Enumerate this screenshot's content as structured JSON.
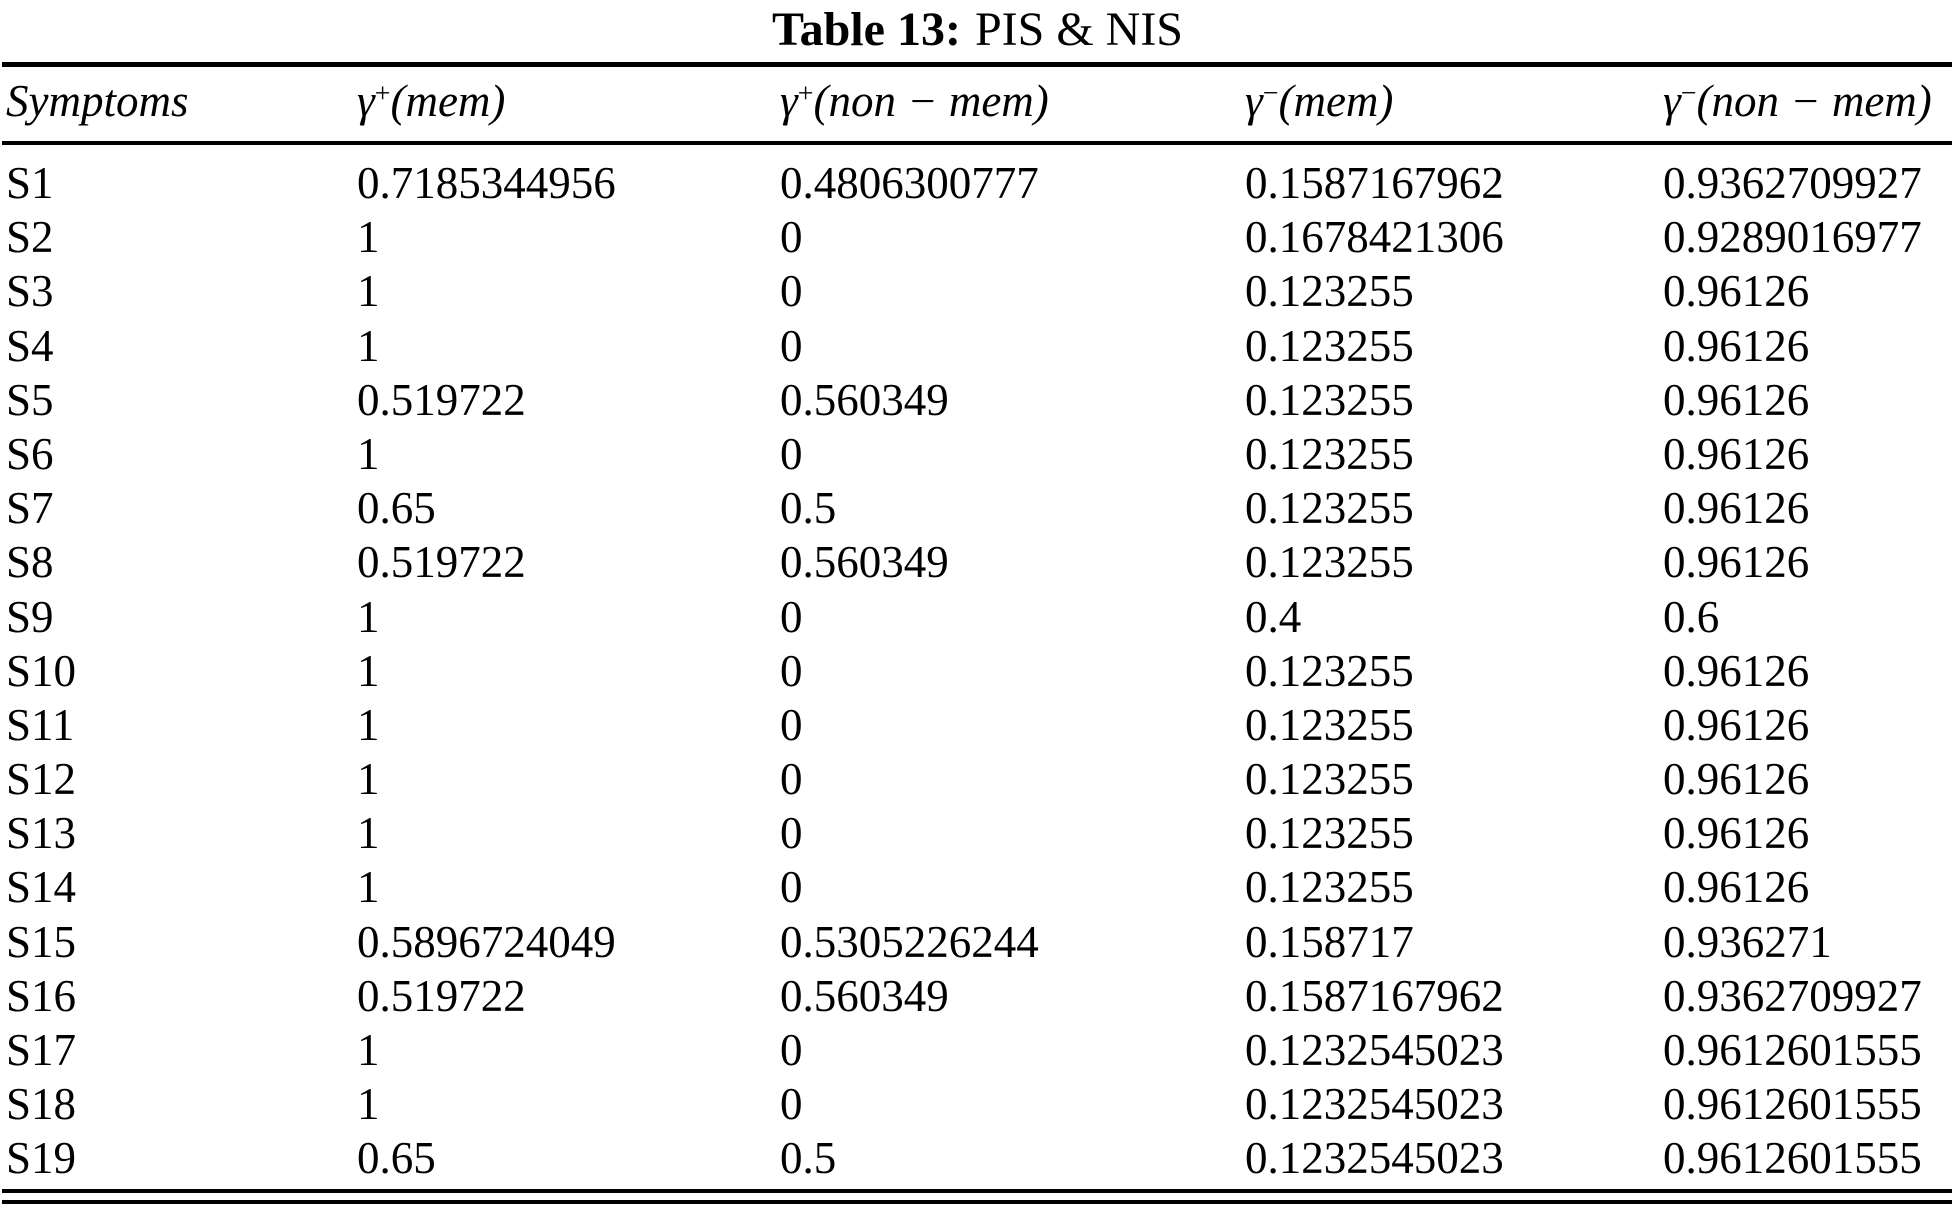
{
  "title": {
    "label": "Table 13:",
    "caption": "PIS & NIS"
  },
  "table": {
    "columns": [
      {
        "label": "Symptoms"
      },
      {
        "base": "γ",
        "sup": "+",
        "args": "(mem)"
      },
      {
        "base": "γ",
        "sup": "+",
        "args": "(non − mem)"
      },
      {
        "base": "γ",
        "sup": "−",
        "args": "(mem)"
      },
      {
        "base": "γ",
        "sup": "−",
        "args": "(non − mem)"
      }
    ],
    "rows": [
      {
        "symptom": "S1",
        "values": [
          "0.7185344956",
          "0.4806300777",
          "0.1587167962",
          "0.9362709927"
        ]
      },
      {
        "symptom": "S2",
        "values": [
          "1",
          "0",
          "0.1678421306",
          "0.9289016977"
        ]
      },
      {
        "symptom": "S3",
        "values": [
          "1",
          "0",
          "0.123255",
          "0.96126"
        ]
      },
      {
        "symptom": "S4",
        "values": [
          "1",
          "0",
          "0.123255",
          "0.96126"
        ]
      },
      {
        "symptom": "S5",
        "values": [
          "0.519722",
          "0.560349",
          "0.123255",
          "0.96126"
        ]
      },
      {
        "symptom": "S6",
        "values": [
          "1",
          "0",
          "0.123255",
          "0.96126"
        ]
      },
      {
        "symptom": "S7",
        "values": [
          "0.65",
          "0.5",
          "0.123255",
          "0.96126"
        ]
      },
      {
        "symptom": "S8",
        "values": [
          "0.519722",
          "0.560349",
          "0.123255",
          "0.96126"
        ]
      },
      {
        "symptom": "S9",
        "values": [
          "1",
          "0",
          "0.4",
          "0.6"
        ]
      },
      {
        "symptom": "S10",
        "values": [
          "1",
          "0",
          "0.123255",
          "0.96126"
        ]
      },
      {
        "symptom": "S11",
        "values": [
          "1",
          "0",
          "0.123255",
          "0.96126"
        ]
      },
      {
        "symptom": "S12",
        "values": [
          "1",
          "0",
          "0.123255",
          "0.96126"
        ]
      },
      {
        "symptom": "S13",
        "values": [
          "1",
          "0",
          "0.123255",
          "0.96126"
        ]
      },
      {
        "symptom": "S14",
        "values": [
          "1",
          "0",
          "0.123255",
          "0.96126"
        ]
      },
      {
        "symptom": "S15",
        "values": [
          "0.5896724049",
          "0.5305226244",
          "0.158717",
          "0.936271"
        ]
      },
      {
        "symptom": "S16",
        "values": [
          "0.519722",
          "0.560349",
          "0.1587167962",
          "0.9362709927"
        ]
      },
      {
        "symptom": "S17",
        "values": [
          "1",
          "0",
          "0.1232545023",
          "0.9612601555"
        ]
      },
      {
        "symptom": "S18",
        "values": [
          "1",
          "0",
          "0.1232545023",
          "0.9612601555"
        ]
      },
      {
        "symptom": "S19",
        "values": [
          "0.65",
          "0.5",
          "0.1232545023",
          "0.9612601555"
        ]
      }
    ]
  }
}
